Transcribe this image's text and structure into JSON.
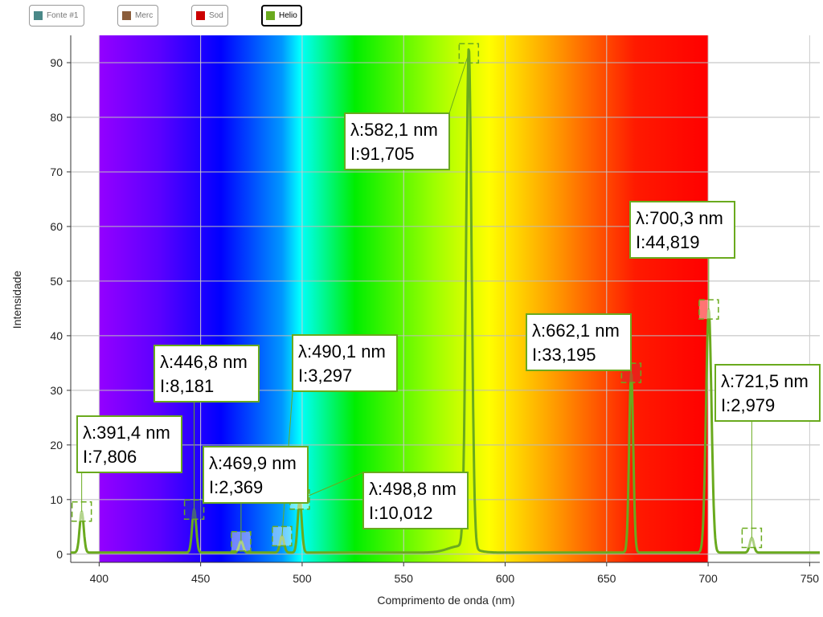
{
  "legend": [
    {
      "label": "Fonte #1",
      "color": "#4a8888",
      "active": false
    },
    {
      "label": "Merc",
      "color": "#8b5e3c",
      "active": false
    },
    {
      "label": "Sod",
      "color": "#cc0000",
      "active": false
    },
    {
      "label": "Helio",
      "color": "#6aaa1e",
      "active": true
    }
  ],
  "chart_data": {
    "type": "line",
    "xlabel": "Comprimento de onda (nm)",
    "ylabel": "Intensidade",
    "xlim": [
      386,
      755
    ],
    "ylim": [
      -1.5,
      95
    ],
    "xticks": [
      "400",
      "450",
      "500",
      "550",
      "600",
      "650",
      "700",
      "750"
    ],
    "yticks": [
      "0",
      "10",
      "20",
      "30",
      "40",
      "50",
      "60",
      "70",
      "80",
      "90"
    ],
    "grid": true,
    "spectrum_range_nm": [
      400,
      700
    ],
    "series": [
      {
        "name": "Helio",
        "color": "#6aaa1e",
        "peaks": [
          {
            "x": 391.4,
            "y": 7.806,
            "label": "λ:391,4 nm",
            "ilabel": "I:7,806"
          },
          {
            "x": 446.8,
            "y": 8.181,
            "label": "λ:446,8 nm",
            "ilabel": "I:8,181"
          },
          {
            "x": 469.9,
            "y": 2.369,
            "label": "λ:469,9 nm",
            "ilabel": "I:2,369"
          },
          {
            "x": 490.1,
            "y": 3.297,
            "label": "λ:490,1 nm",
            "ilabel": "I:3,297"
          },
          {
            "x": 498.8,
            "y": 10.012,
            "label": "λ:498,8 nm",
            "ilabel": "I:10,012"
          },
          {
            "x": 582.1,
            "y": 91.705,
            "label": "λ:582,1 nm",
            "ilabel": "I:91,705"
          },
          {
            "x": 662.1,
            "y": 33.195,
            "label": "λ:662,1 nm",
            "ilabel": "I:33,195"
          },
          {
            "x": 700.3,
            "y": 44.819,
            "label": "λ:700,3 nm",
            "ilabel": "I:44,819"
          },
          {
            "x": 721.5,
            "y": 2.979,
            "label": "λ:721,5 nm",
            "ilabel": "I:2,979"
          }
        ]
      }
    ]
  }
}
